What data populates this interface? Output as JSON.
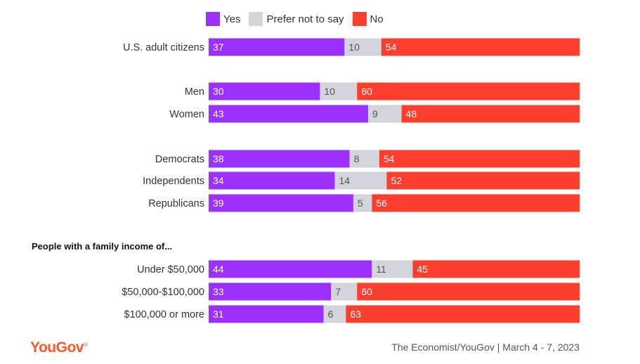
{
  "legend": [
    {
      "label": "Yes",
      "color": "#9b30ff"
    },
    {
      "label": "Prefer not to say",
      "color": "#d2d5db"
    },
    {
      "label": "No",
      "color": "#ff3f2d"
    }
  ],
  "section_title": "People with a family income of...",
  "logo": "YouGov",
  "source": "The Economist/YouGov | March 4 - 7, 2023",
  "chart_data": {
    "type": "bar",
    "orientation": "horizontal",
    "stacked": true,
    "categories": [
      "U.S. adult citizens",
      "Men",
      "Women",
      "Democrats",
      "Independents",
      "Republicans",
      "Under $50,000",
      "$50,000-$100,000",
      "$100,000 or more"
    ],
    "series": [
      {
        "name": "Yes",
        "color": "#9b30ff",
        "label_color": "#ffffff",
        "values": [
          37,
          30,
          43,
          38,
          34,
          39,
          44,
          33,
          31
        ]
      },
      {
        "name": "Prefer not to say",
        "color": "#d2d5db",
        "label_color": "#555555",
        "values": [
          10,
          10,
          9,
          8,
          14,
          5,
          11,
          7,
          6
        ]
      },
      {
        "name": "No",
        "color": "#ff3f2d",
        "label_color": "#ffffff",
        "values": [
          54,
          60,
          48,
          54,
          52,
          56,
          45,
          60,
          63
        ]
      }
    ]
  }
}
